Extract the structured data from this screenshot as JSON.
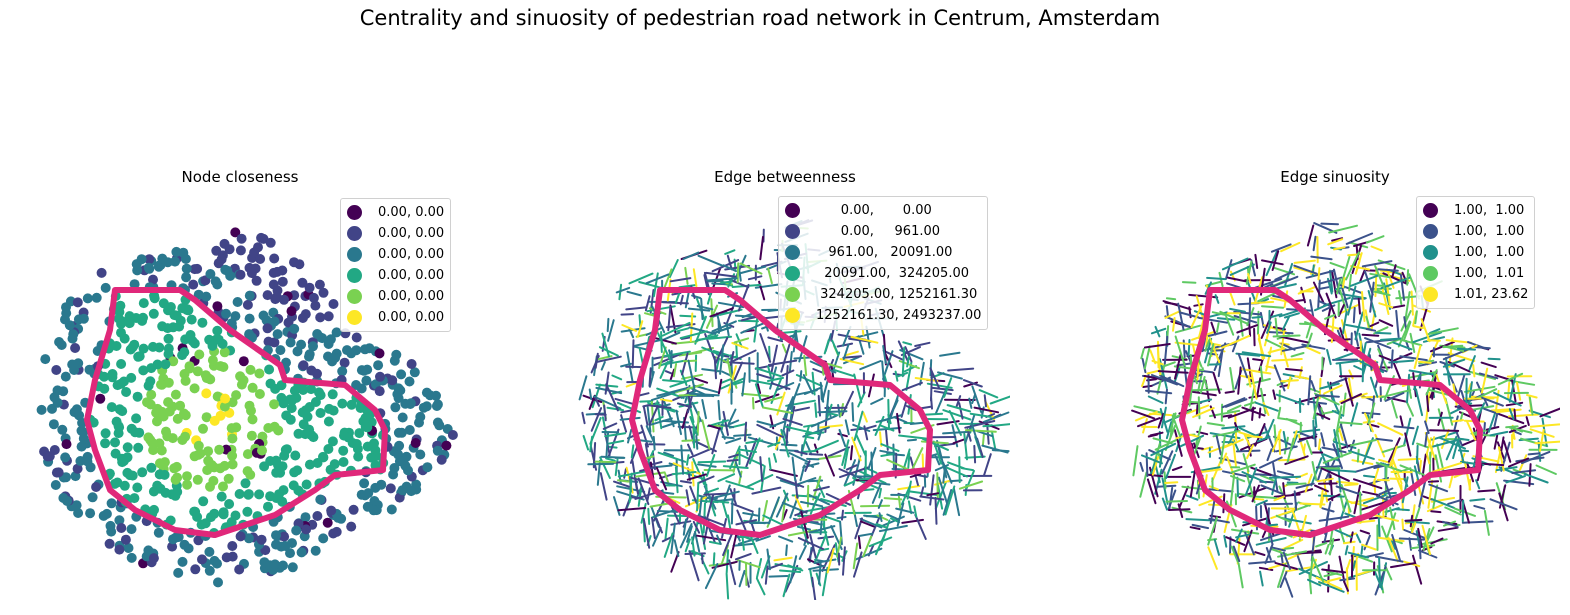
{
  "figure": {
    "suptitle": "Centrality and sinuosity of pedestrian road network in Centrum, Amsterdam"
  },
  "chart_data": [
    {
      "type": "map-points",
      "title": "Node closeness",
      "legend_position": "upper-right",
      "classes": [
        {
          "label": "0.00, 0.00",
          "color": "#440154"
        },
        {
          "label": "0.00, 0.00",
          "color": "#414487"
        },
        {
          "label": "0.00, 0.00",
          "color": "#2a788e"
        },
        {
          "label": "0.00, 0.00",
          "color": "#22a884"
        },
        {
          "label": "0.00, 0.00",
          "color": "#7ad151"
        },
        {
          "label": "0.00, 0.00",
          "color": "#fde725"
        }
      ]
    },
    {
      "type": "map-lines",
      "title": "Edge betweenness",
      "legend_position": "upper-right",
      "classes": [
        {
          "label": "      0.00,       0.00",
          "color": "#440154"
        },
        {
          "label": "      0.00,     961.00",
          "color": "#414487"
        },
        {
          "label": "   961.00,   20091.00",
          "color": "#2a788e"
        },
        {
          "label": "  20091.00,  324205.00",
          "color": "#22a884"
        },
        {
          "label": " 324205.00, 1252161.30",
          "color": "#7ad151"
        },
        {
          "label": "1252161.30, 2493237.00",
          "color": "#fde725"
        }
      ]
    },
    {
      "type": "map-lines",
      "title": "Edge sinuosity",
      "legend_position": "upper-right",
      "classes": [
        {
          "label": "1.00,  1.00",
          "color": "#440154"
        },
        {
          "label": "1.00,  1.00",
          "color": "#3b528b"
        },
        {
          "label": "1.00,  1.00",
          "color": "#21918c"
        },
        {
          "label": "1.00,  1.01",
          "color": "#5ec962"
        },
        {
          "label": "1.01, 23.62",
          "color": "#fde725"
        }
      ]
    }
  ],
  "boundary_color": "#e0287a"
}
